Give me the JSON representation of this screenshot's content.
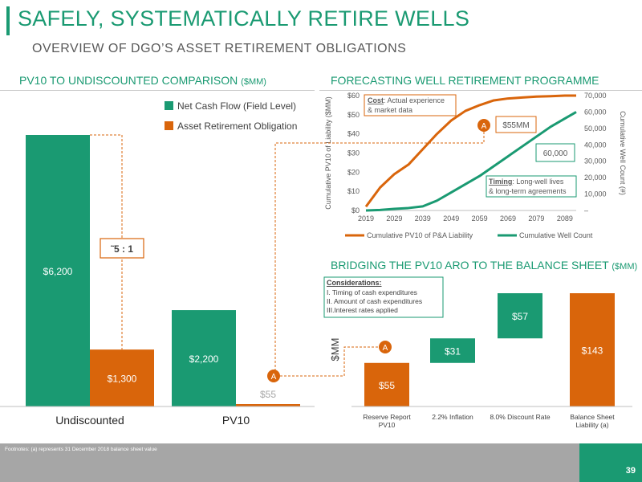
{
  "title": "SAFELY, SYSTEMATICALLY RETIRE WELLS",
  "subtitle": "OVERVIEW OF DGO’S ASSET RETIREMENT OBLIGATIONS",
  "left_section": {
    "title": "PV10 TO UNDISCOUNTED COMPARISON",
    "unit": "($MM)"
  },
  "top_section": {
    "title": "FORECASTING WELL RETIREMENT PROGRAMME"
  },
  "bridge_section": {
    "title": "BRIDGING THE PV10 ARO TO THE BALANCE SHEET",
    "unit": "($MM)"
  },
  "colors": {
    "green": "#1a9a72",
    "orange": "#d9650b",
    "grey": "#a6a6a6"
  },
  "chart_data": [
    {
      "type": "bar",
      "categories": [
        "Undiscounted",
        "PV10"
      ],
      "series": [
        {
          "name": "Net Cash Flow (Field Level)",
          "values": [
            6200,
            2200
          ]
        },
        {
          "name": "Asset Retirement Obligation",
          "values": [
            1300,
            55
          ]
        }
      ],
      "value_labels": [
        [
          "$6,200",
          "$2,200"
        ],
        [
          "$1,300",
          "$55"
        ]
      ],
      "ylim": [
        0,
        6200
      ],
      "legend_position": "top-right",
      "annotations": [
        {
          "text": "˜5 : 1"
        },
        {
          "text": "A"
        }
      ]
    },
    {
      "type": "line",
      "x": [
        2019,
        2029,
        2039,
        2049,
        2059,
        2069,
        2079,
        2089
      ],
      "xlim": [
        2019,
        2093
      ],
      "series": [
        {
          "name": "Cumulative PV10 of P&A Liability",
          "axis": "left",
          "points": [
            [
              2019,
              2
            ],
            [
              2024,
              12
            ],
            [
              2029,
              19
            ],
            [
              2034,
              24
            ],
            [
              2039,
              32
            ],
            [
              2044,
              40
            ],
            [
              2049,
              47
            ],
            [
              2054,
              52
            ],
            [
              2059,
              55
            ],
            [
              2064,
              57.5
            ],
            [
              2069,
              58.5
            ],
            [
              2074,
              59
            ],
            [
              2079,
              59.5
            ],
            [
              2084,
              59.7
            ],
            [
              2089,
              60
            ],
            [
              2093,
              60
            ]
          ]
        },
        {
          "name": "Cumulative Well Count",
          "axis": "right",
          "points": [
            [
              2019,
              0
            ],
            [
              2024,
              300
            ],
            [
              2029,
              1000
            ],
            [
              2034,
              1500
            ],
            [
              2039,
              2500
            ],
            [
              2044,
              6000
            ],
            [
              2049,
              11000
            ],
            [
              2054,
              16000
            ],
            [
              2059,
              21000
            ],
            [
              2064,
              27000
            ],
            [
              2069,
              33000
            ],
            [
              2074,
              39000
            ],
            [
              2079,
              45000
            ],
            [
              2084,
              51000
            ],
            [
              2089,
              56000
            ],
            [
              2093,
              60000
            ]
          ]
        }
      ],
      "ylabel_left": "Cumulative PV10 of Liability ($MM)",
      "ylabel_right": "Cumulative Well Count (#)",
      "ylim_left": [
        0,
        60
      ],
      "ylim_right": [
        0,
        70000
      ],
      "yticks_left": [
        "$0",
        "$10",
        "$20",
        "$30",
        "$40",
        "$50",
        "$60"
      ],
      "yticks_right": [
        "–",
        "10,000",
        "20,000",
        "30,000",
        "40,000",
        "50,000",
        "60,000",
        "70,000"
      ],
      "xticks": [
        "2019",
        "2029",
        "2039",
        "2049",
        "2059",
        "2069",
        "2079",
        "2089"
      ],
      "legend_position": "bottom",
      "callouts": {
        "cost_bold": "Cost",
        "cost_rest": ": Actual experience",
        "cost_line2": "& market data",
        "pv_marker": "A",
        "pv_value": "$55MM",
        "well_value": "60,000",
        "timing_bold": "Timing",
        "timing_rest": ": Long-well lives",
        "timing_line2": "& long-term agreements"
      }
    },
    {
      "type": "bar",
      "subtype": "waterfall",
      "categories": [
        "Reserve Report PV10",
        "2.2% Inflation",
        "8.0% Discount Rate",
        "Balance Sheet Liability (a)"
      ],
      "values": [
        55,
        31,
        57,
        143
      ],
      "value_labels": [
        "$55",
        "$31",
        "$57",
        "$143"
      ],
      "ylabel": "$MM",
      "ylim": [
        0,
        143
      ],
      "considerations": {
        "title": "Considerations:",
        "items": [
          "I.  Timing of cash expenditures",
          "II. Amount of cash expenditures",
          "III.Interest rates applied"
        ]
      },
      "marker": "A"
    }
  ],
  "footnote": "Footnotes: (a) represents 31 December 2018 balance sheet value",
  "page_number": "39"
}
